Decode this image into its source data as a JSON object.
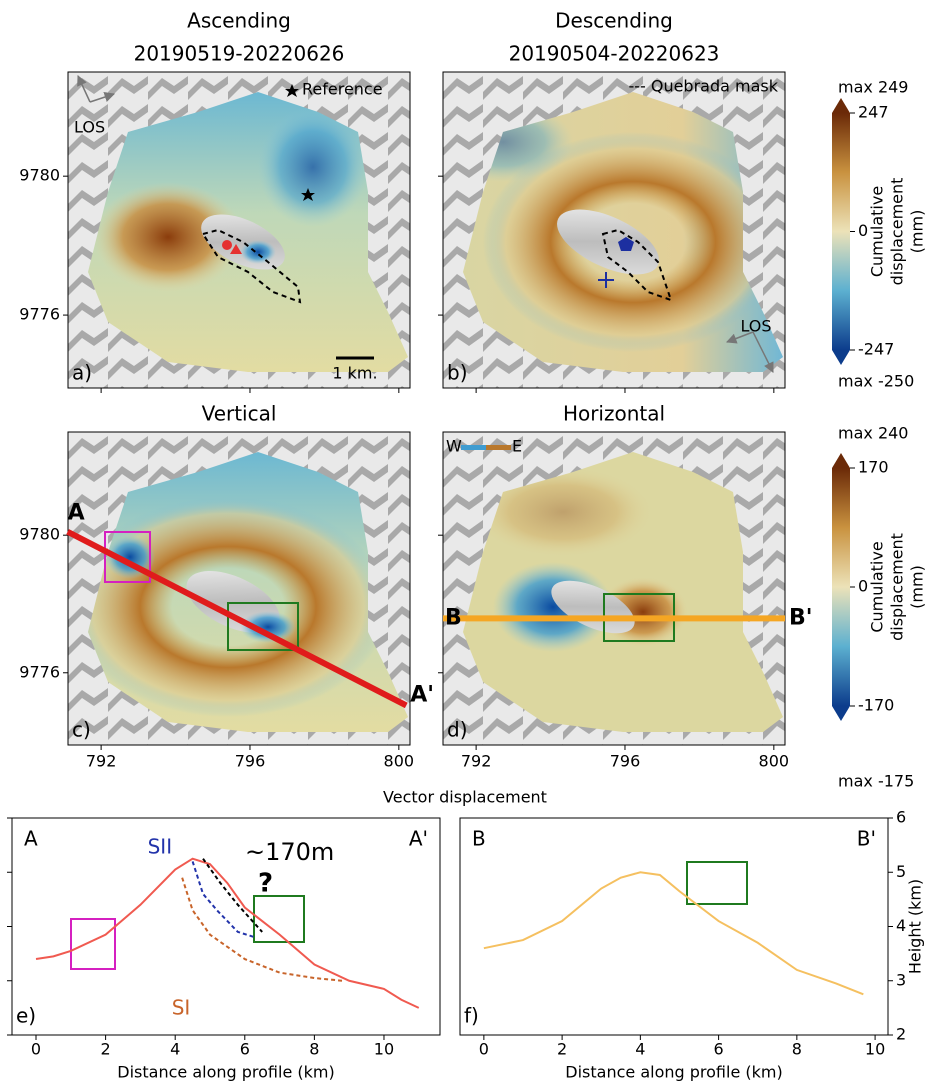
{
  "maps": {
    "xlim": [
      791.11,
      800.3
    ],
    "ylim": [
      9773.9,
      9783.0
    ],
    "xticks": [
      792,
      796,
      800
    ],
    "yticks": [
      9776,
      9780
    ],
    "panels": [
      {
        "title": "Ascending",
        "subtitle": "20190519-20220626",
        "label": "a)",
        "notes": [
          "Reference",
          "LOS",
          "1 km."
        ]
      },
      {
        "title": "Descending",
        "subtitle": "20190504-20220623",
        "label": "b)",
        "notes": [
          "--- Quebrada mask",
          "LOS"
        ]
      },
      {
        "title": "Vertical",
        "label": "c)",
        "section": {
          "start_label": "A",
          "end_label": "A'",
          "start": [
            791.1,
            9780.1
          ],
          "end": [
            800.2,
            9775.05
          ],
          "color": "#e01b1b"
        }
      },
      {
        "title": "Horizontal",
        "label": "d)",
        "notes": [
          "W",
          "E"
        ],
        "section": {
          "start_label": "B",
          "end_label": "B'",
          "start": [
            791.11,
            9777.58
          ],
          "end": [
            800.3,
            9777.58
          ],
          "color": "#f5a623"
        }
      }
    ]
  },
  "colorbars": [
    {
      "label": [
        "Cumulative",
        "displacement",
        "(mm)"
      ],
      "lim": [
        -247,
        247
      ],
      "ticks": [
        247,
        0,
        -247
      ],
      "top_note": "max 249",
      "bottom_note": "max -250"
    },
    {
      "label": [
        "Cumulative",
        "displacement",
        "(mm)"
      ],
      "lim": [
        -170,
        170
      ],
      "ticks": [
        170,
        0,
        -170
      ],
      "top_note": "max 240",
      "bottom_note": "max -175"
    }
  ],
  "profiles": {
    "title": "Vector displacement",
    "xlabel": "Distance along profile (km)",
    "ylabel": "Height (km)",
    "ylim": [
      2,
      6
    ],
    "yticks": [
      2,
      3,
      4,
      5,
      6
    ],
    "xticks": [
      0,
      2,
      4,
      6,
      8,
      10
    ],
    "panels": [
      {
        "label": "e)",
        "start_label": "A",
        "end_label": "A'",
        "xlim": [
          -0.69,
          11.61
        ],
        "color": "#f05a50",
        "x": [
          0,
          0.5,
          1,
          2,
          3,
          4,
          4.5,
          5,
          5.5,
          6,
          7,
          8,
          9,
          10,
          10.5,
          11
        ],
        "height": [
          3.4,
          3.45,
          3.55,
          3.85,
          4.4,
          5.05,
          5.25,
          5.15,
          4.8,
          4.35,
          3.85,
          3.3,
          3.0,
          2.85,
          2.65,
          2.5
        ],
        "surfaces": [
          {
            "name": "SII",
            "color": "#2233aa",
            "x": [
              4.5,
              4.8,
              5.2,
              5.8,
              6.3
            ],
            "height": [
              5.2,
              4.6,
              4.3,
              3.9,
              3.8
            ]
          },
          {
            "name": "SI",
            "color": "#c8642a",
            "x": [
              4.2,
              4.5,
              5,
              6,
              7,
              8,
              8.8
            ],
            "height": [
              4.9,
              4.3,
              3.85,
              3.4,
              3.15,
              3.05,
              3.0
            ]
          },
          {
            "color": "#000000",
            "x": [
              4.8,
              5.3,
              5.8,
              6.5
            ],
            "height": [
              5.25,
              4.8,
              4.4,
              3.9
            ]
          }
        ],
        "notes": [
          "~170m",
          "?"
        ]
      },
      {
        "label": "f)",
        "start_label": "B",
        "end_label": "B'",
        "xlim": [
          -0.61,
          10.33
        ],
        "color": "#f5c060",
        "x": [
          0,
          1,
          2,
          3,
          3.5,
          4,
          4.5,
          5,
          6,
          7,
          8,
          9,
          9.7
        ],
        "height": [
          3.6,
          3.75,
          4.1,
          4.7,
          4.9,
          5.0,
          4.95,
          4.65,
          4.1,
          3.7,
          3.2,
          2.95,
          2.75
        ]
      }
    ]
  }
}
